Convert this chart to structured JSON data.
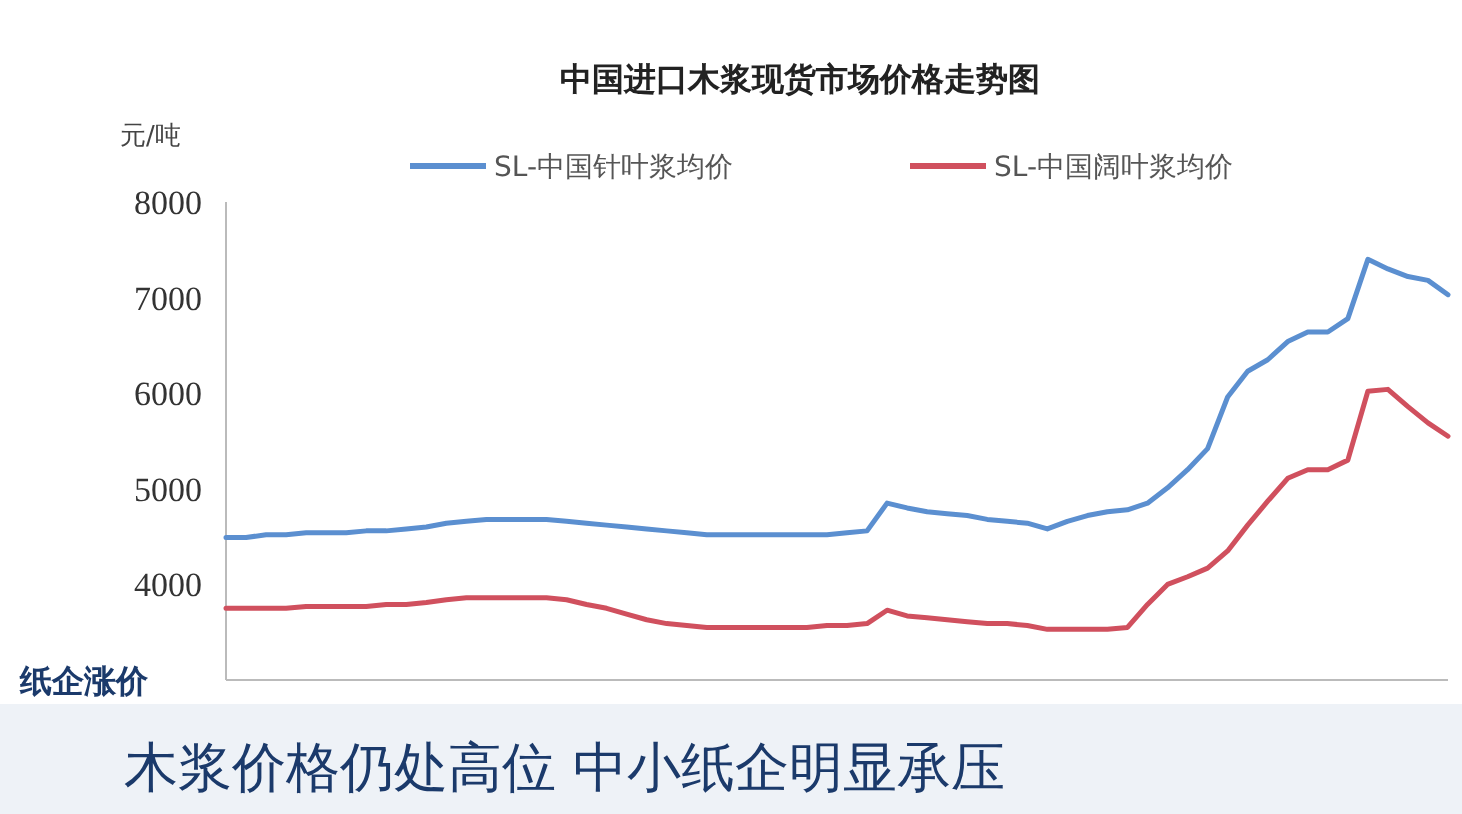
{
  "chart_data": {
    "type": "line",
    "title": "中国进口木浆现货市场价格走势图",
    "ylabel": "元/吨",
    "categories": [
      null,
      null,
      null,
      null,
      null,
      null,
      null,
      null,
      null,
      null,
      null,
      null,
      null,
      null,
      null,
      null,
      null,
      null,
      null,
      null,
      null,
      null,
      null,
      null,
      null,
      null,
      null,
      null,
      null,
      null,
      null,
      null,
      null,
      null,
      null,
      null,
      null,
      null,
      null,
      null,
      null,
      null,
      null,
      null,
      null,
      null,
      null,
      null,
      null,
      null,
      null,
      null,
      null,
      null,
      null,
      null,
      null,
      null,
      null,
      null,
      null,
      null
    ],
    "series": [
      {
        "name": "SL-中国针叶浆均价",
        "color": "#5b8fd0",
        "values": [
          4490,
          4490,
          4520,
          4520,
          4540,
          4540,
          4540,
          4560,
          4560,
          4580,
          4600,
          4640,
          4660,
          4680,
          4680,
          4680,
          4680,
          4660,
          4640,
          4620,
          4600,
          4580,
          4560,
          4540,
          4520,
          4520,
          4520,
          4520,
          4520,
          4520,
          4520,
          4540,
          4560,
          4850,
          4800,
          4760,
          4740,
          4720,
          4680,
          4660,
          4640,
          4580,
          4660,
          4720,
          4760,
          4780,
          4850,
          5010,
          5200,
          5420,
          5960,
          6230,
          6350,
          6540,
          6640,
          6640,
          6780,
          7400,
          7300,
          7220,
          7180,
          7030
        ]
      },
      {
        "name": "SL-中国阔叶浆均价",
        "color": "#d0505e",
        "values": [
          3750,
          3750,
          3750,
          3750,
          3770,
          3770,
          3770,
          3770,
          3790,
          3790,
          3810,
          3840,
          3860,
          3860,
          3860,
          3860,
          3860,
          3840,
          3790,
          3750,
          3690,
          3630,
          3590,
          3570,
          3550,
          3550,
          3550,
          3550,
          3550,
          3550,
          3570,
          3570,
          3590,
          3730,
          3670,
          3650,
          3630,
          3610,
          3590,
          3590,
          3570,
          3530,
          3530,
          3530,
          3530,
          3550,
          3790,
          4000,
          4080,
          4170,
          4350,
          4620,
          4870,
          5110,
          5200,
          5200,
          5300,
          6020,
          6040,
          5860,
          5690,
          5550
        ]
      }
    ],
    "ylim": [
      3000,
      8000
    ],
    "yticks": [
      4000,
      5000,
      6000,
      7000,
      8000
    ],
    "grid": false,
    "legend": "top",
    "annotations": [
      "纸企涨价",
      "木浆价格仍处高位 中小纸企明显承压"
    ]
  }
}
